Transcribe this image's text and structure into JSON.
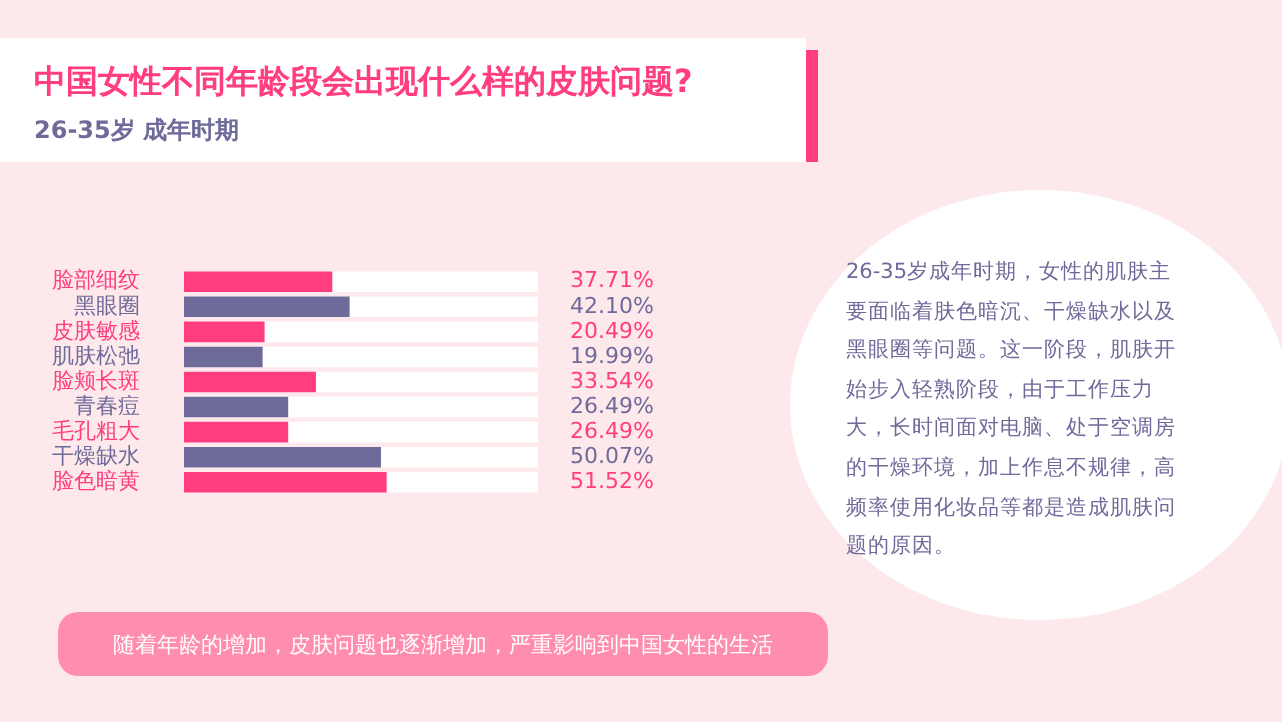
{
  "chart_data": {
    "type": "bar",
    "orientation": "horizontal",
    "title": "中国女性不同年龄段会出现什么样的皮肤问题?",
    "subtitle": "26-35岁 成年时期",
    "categories": [
      "脸部细纹",
      "黑眼圈",
      "皮肤敏感",
      "肌肤松弛",
      "脸颊长斑",
      "青春痘",
      "毛孔粗大",
      "干燥缺水",
      "脸色暗黄"
    ],
    "values": [
      37.71,
      42.1,
      20.49,
      19.99,
      33.54,
      26.49,
      26.49,
      50.07,
      51.52
    ],
    "colors": [
      "#ff3d7f",
      "#6e6a9a",
      "#ff3d7f",
      "#6e6a9a",
      "#ff3d7f",
      "#6e6a9a",
      "#ff3d7f",
      "#6e6a9a",
      "#ff3d7f"
    ],
    "value_labels": [
      "37.71%",
      "42.10%",
      "20.49%",
      "19.99%",
      "33.54%",
      "26.49%",
      "26.49%",
      "50.07%",
      "51.52%"
    ],
    "xlim": [
      0,
      90
    ],
    "tick_labels": "y",
    "grid": false,
    "legend": false,
    "annotations": [
      "26-35岁成年时期，女性的肌肤主要面临着肤色暗沉、干燥缺水以及黑眼圈等问题。这一阶段，肌肤开始步入轻熟阶段，由于工作压力大，长时间面对电脑、处于空调房的干燥环境，加上作息不规律，高频率使用化妆品等都是造成肌肤问题的原因。",
      "随着年龄的增加，皮肤问题也逐渐增加，严重影响到中国女性的生活"
    ]
  }
}
